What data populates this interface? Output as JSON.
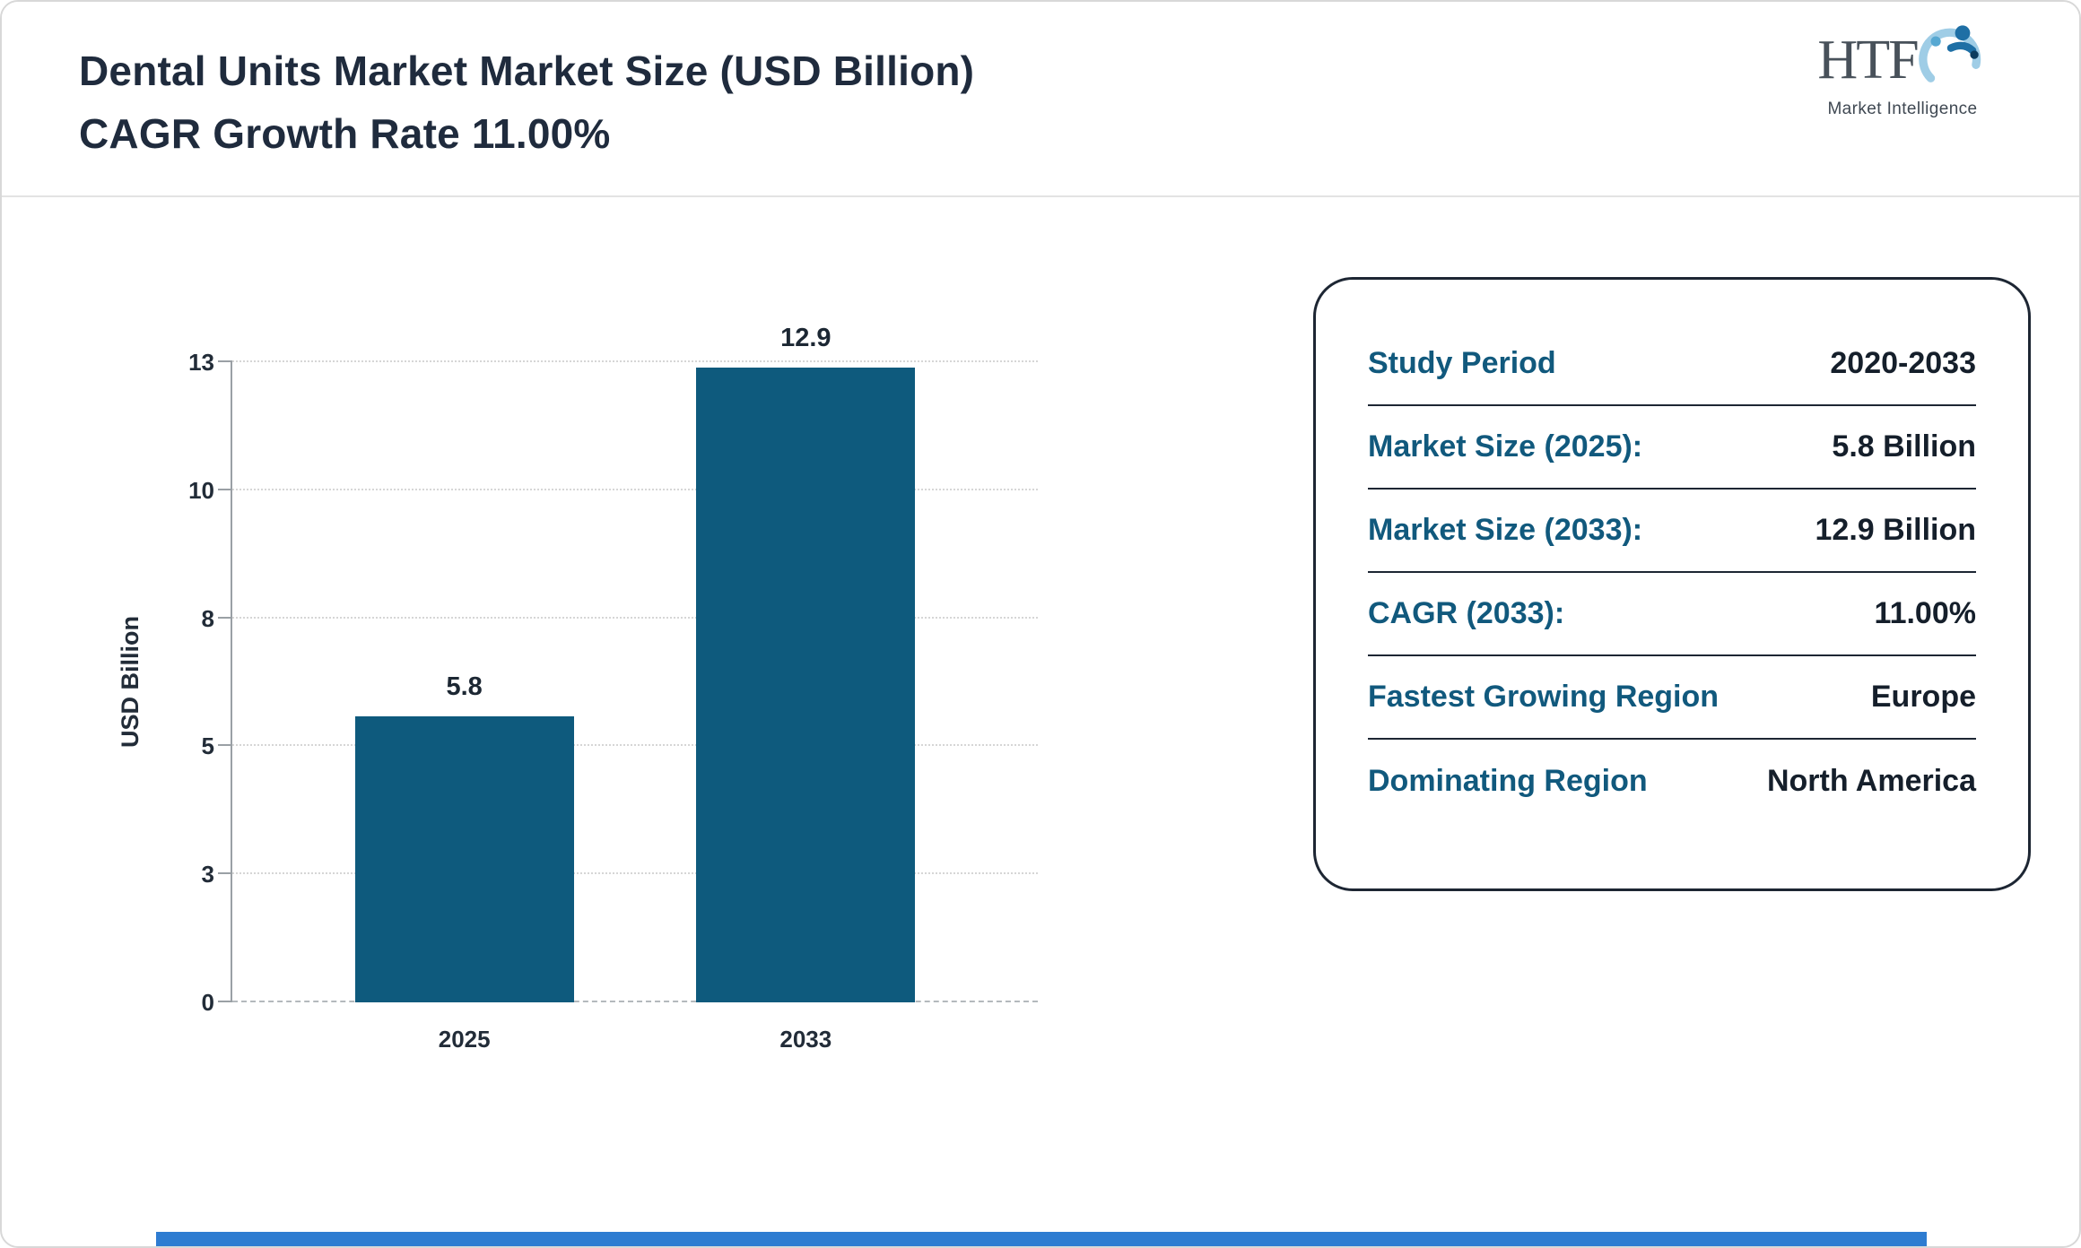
{
  "page": {
    "title_line1": "Dental Units Market Market Size (USD Billion)",
    "title_line2": "CAGR Growth Rate 11.00%"
  },
  "logo": {
    "name": "HTF",
    "subtitle": "Market Intelligence"
  },
  "chart_data": {
    "type": "bar",
    "title": "Dental Units Market Market Size (USD Billion) CAGR Growth Rate 11.00%",
    "categories": [
      "2025",
      "2033"
    ],
    "values": [
      5.8,
      12.9
    ],
    "value_labels": [
      "5.8",
      "12.9"
    ],
    "xlabel": "",
    "ylabel": "USD Billion",
    "ylim": [
      0,
      13
    ],
    "yticks": [
      "0",
      "3",
      "5",
      "8",
      "10",
      "13"
    ],
    "yticks_equally_spaced": true,
    "grid": "horizontal dotted",
    "legend": "none",
    "bar_color": "#0e5a7d"
  },
  "info_card": {
    "rows": [
      {
        "label": "Study Period",
        "value": "2020-2033"
      },
      {
        "label": "Market Size (2025):",
        "value": "5.8 Billion"
      },
      {
        "label": "Market Size (2033):",
        "value": "12.9 Billion"
      },
      {
        "label": "CAGR (2033):",
        "value": "11.00%"
      },
      {
        "label": "Fastest Growing Region",
        "value": "Europe"
      },
      {
        "label": "Dominating Region",
        "value": "North America"
      }
    ]
  },
  "colors": {
    "bar": "#0e5a7d",
    "card_label": "#11597d",
    "title_text": "#1f2b3d",
    "footer_accent": "#2e7cd1"
  }
}
